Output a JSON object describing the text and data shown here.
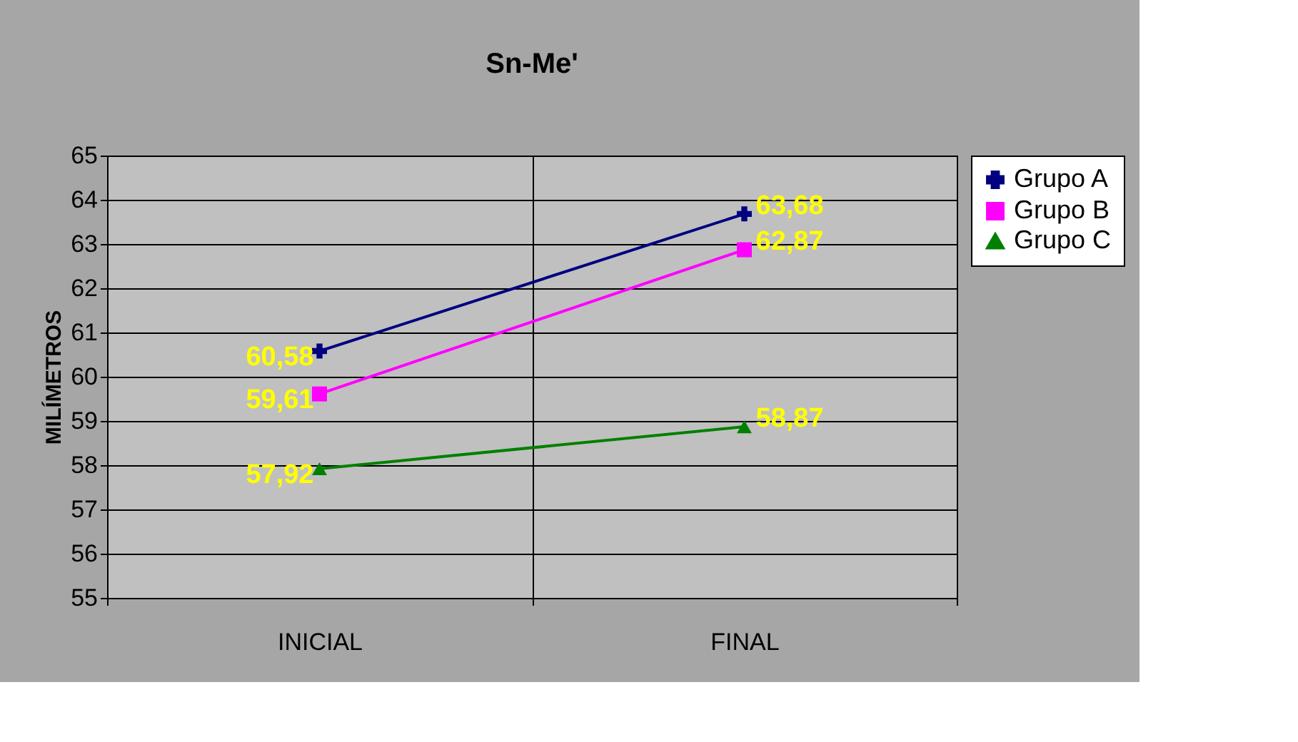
{
  "chart_data": {
    "type": "line",
    "title": "Sn-Me'",
    "ylabel": "MILÍMETROS",
    "categories": [
      "INICIAL",
      "FINAL"
    ],
    "series": [
      {
        "name": "Grupo A",
        "color": "#000080",
        "marker": "cross",
        "values": [
          60.58,
          63.68
        ],
        "value_labels": [
          "60,58",
          "63,68"
        ]
      },
      {
        "name": "Grupo B",
        "color": "#ff00ff",
        "marker": "square",
        "values": [
          59.61,
          62.87
        ],
        "value_labels": [
          "59,61",
          "62,87"
        ]
      },
      {
        "name": "Grupo C",
        "color": "#008000",
        "marker": "triangle",
        "values": [
          57.92,
          58.87
        ],
        "value_labels": [
          "57,92",
          "58,87"
        ]
      }
    ],
    "ylim": [
      55,
      65
    ],
    "yticks": [
      55,
      56,
      57,
      58,
      59,
      60,
      61,
      62,
      63,
      64,
      65
    ],
    "grid": true,
    "legend": "right"
  }
}
